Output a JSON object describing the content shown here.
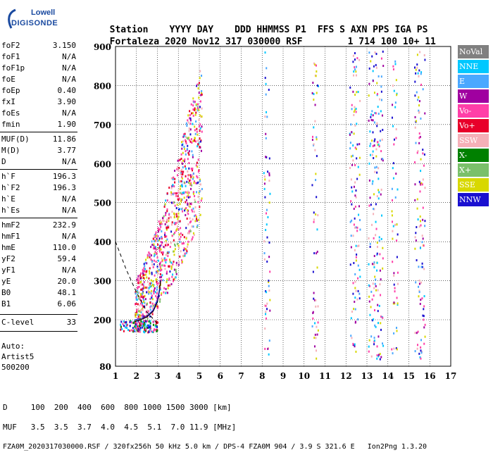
{
  "logo": {
    "line1": "Lowell",
    "line2": "DIGISONDE"
  },
  "header": {
    "row1": [
      "Station",
      "YYYY",
      "DAY",
      "DDD",
      "HHMMSS",
      "P1",
      "FFS",
      "S",
      "AXN",
      "PPS",
      "IGA",
      "PS"
    ],
    "row2": [
      "Fortaleza",
      "2020",
      "Nov12",
      "317",
      "030000",
      "RSF",
      "1",
      "714",
      "100",
      "10+",
      "11"
    ]
  },
  "params": [
    {
      "k": "foF2",
      "v": "3.150"
    },
    {
      "k": "foF1",
      "v": "N/A"
    },
    {
      "k": "foF1p",
      "v": "N/A"
    },
    {
      "k": "foE",
      "v": "N/A"
    },
    {
      "k": "foEp",
      "v": "0.40"
    },
    {
      "k": "fxI",
      "v": "3.90"
    },
    {
      "k": "foEs",
      "v": "N/A"
    },
    {
      "k": "fmin",
      "v": "1.90"
    },
    {
      "k": "MUF(D)",
      "v": "11.86"
    },
    {
      "k": "M(D)",
      "v": "3.77"
    },
    {
      "k": "D",
      "v": "N/A"
    },
    {
      "k": "h`F",
      "v": "196.3"
    },
    {
      "k": "h`F2",
      "v": "196.3"
    },
    {
      "k": "h`E",
      "v": "N/A"
    },
    {
      "k": "h`Es",
      "v": "N/A"
    },
    {
      "k": "hmF2",
      "v": "232.9"
    },
    {
      "k": "hmF1",
      "v": "N/A"
    },
    {
      "k": "hmE",
      "v": "110.0"
    },
    {
      "k": "yF2",
      "v": "59.4"
    },
    {
      "k": "yF1",
      "v": "N/A"
    },
    {
      "k": "yE",
      "v": "20.0"
    },
    {
      "k": "B0",
      "v": "48.1"
    },
    {
      "k": "B1",
      "v": "6.06"
    },
    {
      "k": "C-level",
      "v": "33"
    }
  ],
  "auto": {
    "l1": "Auto:",
    "l2": "Artist5",
    "l3": "500200"
  },
  "legend": [
    {
      "label": "NoVal",
      "color": "#808080"
    },
    {
      "label": "NNE",
      "color": "#00c8ff"
    },
    {
      "label": "E",
      "color": "#4aa8ff"
    },
    {
      "label": "W",
      "color": "#a000a0"
    },
    {
      "label": "Vo-",
      "color": "#ff3fa8"
    },
    {
      "label": "Vo+",
      "color": "#e8002a"
    },
    {
      "label": "SSW",
      "color": "#f5b0b8"
    },
    {
      "label": "X-",
      "color": "#008000"
    },
    {
      "label": "X+",
      "color": "#7ac06a"
    },
    {
      "label": "SSE",
      "color": "#d8d800"
    },
    {
      "label": "NNW",
      "color": "#1a10d0"
    }
  ],
  "footer": {
    "d_row": [
      "D",
      "100",
      "200",
      "400",
      "600",
      "800",
      "1000",
      "1500",
      "3000",
      "[km]"
    ],
    "muf_row": [
      "MUF",
      "3.5",
      "3.5",
      "3.7",
      "4.0",
      "4.5",
      "5.1",
      "7.0",
      "11.9",
      "[MHz]"
    ],
    "file_line": "FZA0M_2020317030000.RSF / 320fx256h 50 kHz 5.0 km / DPS-4 FZA0M 904 / 3.9 S 321.6 E   Ion2Png 1.3.20"
  },
  "chart_data": {
    "type": "scatter",
    "xlim": [
      1,
      17
    ],
    "ylim": [
      80,
      900
    ],
    "x_ticks": [
      1,
      2,
      3,
      4,
      5,
      6,
      7,
      8,
      9,
      10,
      11,
      12,
      13,
      14,
      15,
      16,
      17
    ],
    "y_ticks": [
      80,
      200,
      300,
      400,
      500,
      600,
      700,
      800,
      900
    ],
    "grid": true,
    "xlabel": "",
    "ylabel": "",
    "profile_curve": {
      "x": [
        1.9,
        2.2,
        2.5,
        2.8,
        3.0,
        3.1,
        3.15
      ],
      "y": [
        196,
        200,
        207,
        222,
        245,
        275,
        300
      ]
    },
    "dashed_curve": {
      "x": [
        1.0,
        1.5,
        2.0,
        2.5,
        3.0
      ],
      "y": [
        400,
        330,
        270,
        220,
        190
      ]
    },
    "trace_curve": {
      "x": [
        1.9,
        2.2,
        2.5,
        2.8,
        3.0,
        3.1
      ],
      "y": [
        200,
        203,
        210,
        225,
        250,
        280
      ]
    }
  }
}
